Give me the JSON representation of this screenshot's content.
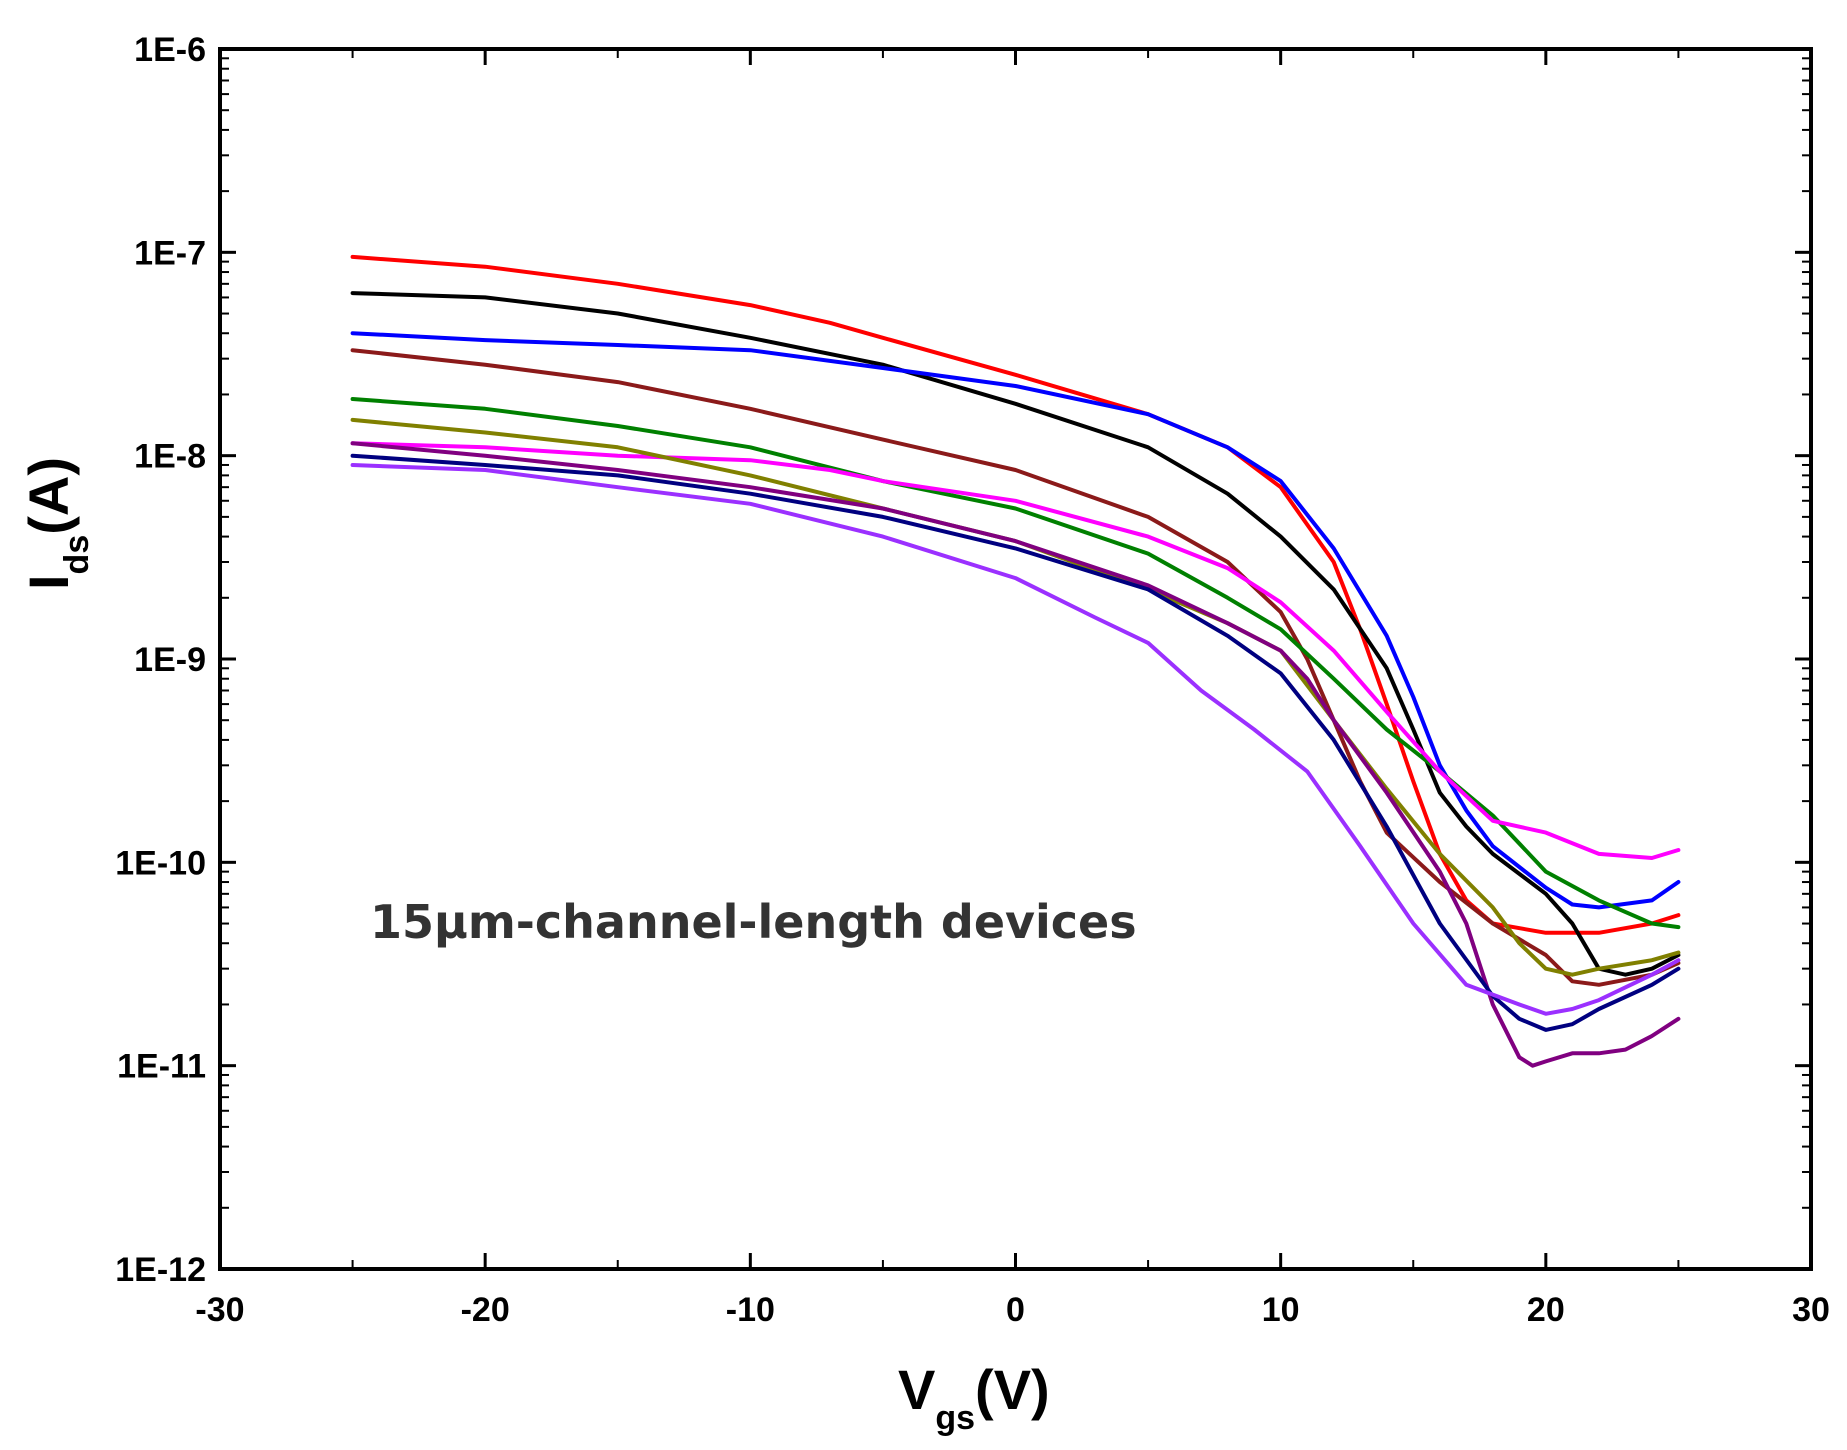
{
  "chart_data": {
    "type": "line",
    "title": "",
    "xlabel": {
      "main": "V",
      "sub": "gs",
      "unit": "(V)"
    },
    "ylabel": {
      "main": "I",
      "sub": "ds",
      "unit": "(A)"
    },
    "xlim": [
      -30,
      30
    ],
    "ylim_log10": [
      -12,
      -6
    ],
    "y_scale": "log",
    "x_ticks": [
      -30,
      -20,
      -10,
      0,
      10,
      20,
      30
    ],
    "x_tick_labels": [
      "-30",
      "-20",
      "-10",
      "0",
      "10",
      "20",
      "30"
    ],
    "y_ticks_log10": [
      -6,
      -7,
      -8,
      -9,
      -10,
      -11,
      -12
    ],
    "y_tick_labels": [
      "1E-6",
      "1E-7",
      "1E-8",
      "1E-9",
      "1E-10",
      "1E-11",
      "1E-12"
    ],
    "annotation": "15μm-channel-length devices",
    "grid": false,
    "legend": "none",
    "series": [
      {
        "name": "red",
        "color": "#ff0000",
        "points": [
          [
            -25,
            9.5e-08
          ],
          [
            -20,
            8.5e-08
          ],
          [
            -15,
            7e-08
          ],
          [
            -10,
            5.5e-08
          ],
          [
            -7,
            4.5e-08
          ],
          [
            -5,
            3.8e-08
          ],
          [
            0,
            2.5e-08
          ],
          [
            5,
            1.6e-08
          ],
          [
            8,
            1.1e-08
          ],
          [
            10,
            7e-09
          ],
          [
            12,
            3e-09
          ],
          [
            13,
            1.4e-09
          ],
          [
            14,
            6e-10
          ],
          [
            15,
            2.5e-10
          ],
          [
            16,
            1.1e-10
          ],
          [
            17,
            6.5e-11
          ],
          [
            18,
            5e-11
          ],
          [
            20,
            4.5e-11
          ],
          [
            22,
            4.5e-11
          ],
          [
            24,
            5e-11
          ],
          [
            25,
            5.5e-11
          ]
        ]
      },
      {
        "name": "black",
        "color": "#000000",
        "points": [
          [
            -25,
            6.3e-08
          ],
          [
            -20,
            6e-08
          ],
          [
            -15,
            5e-08
          ],
          [
            -10,
            3.8e-08
          ],
          [
            -5,
            2.8e-08
          ],
          [
            0,
            1.8e-08
          ],
          [
            5,
            1.1e-08
          ],
          [
            8,
            6.5e-09
          ],
          [
            10,
            4e-09
          ],
          [
            12,
            2.2e-09
          ],
          [
            14,
            9e-10
          ],
          [
            15,
            4.5e-10
          ],
          [
            16,
            2.2e-10
          ],
          [
            17,
            1.5e-10
          ],
          [
            18,
            1.1e-10
          ],
          [
            20,
            7e-11
          ],
          [
            21,
            5e-11
          ],
          [
            22,
            3e-11
          ],
          [
            23,
            2.8e-11
          ],
          [
            24,
            3e-11
          ],
          [
            25,
            3.5e-11
          ]
        ]
      },
      {
        "name": "blue",
        "color": "#0000ff",
        "points": [
          [
            -25,
            4e-08
          ],
          [
            -20,
            3.7e-08
          ],
          [
            -15,
            3.5e-08
          ],
          [
            -10,
            3.3e-08
          ],
          [
            -5,
            2.7e-08
          ],
          [
            0,
            2.2e-08
          ],
          [
            5,
            1.6e-08
          ],
          [
            8,
            1.1e-08
          ],
          [
            10,
            7.5e-09
          ],
          [
            12,
            3.5e-09
          ],
          [
            14,
            1.3e-09
          ],
          [
            15,
            6.5e-10
          ],
          [
            16,
            3e-10
          ],
          [
            17,
            1.8e-10
          ],
          [
            18,
            1.2e-10
          ],
          [
            20,
            7.5e-11
          ],
          [
            21,
            6.2e-11
          ],
          [
            22,
            6e-11
          ],
          [
            24,
            6.5e-11
          ],
          [
            25,
            8e-11
          ]
        ]
      },
      {
        "name": "dark-red",
        "color": "#8b1a1a",
        "points": [
          [
            -25,
            3.3e-08
          ],
          [
            -20,
            2.8e-08
          ],
          [
            -15,
            2.3e-08
          ],
          [
            -10,
            1.7e-08
          ],
          [
            -5,
            1.2e-08
          ],
          [
            0,
            8.5e-09
          ],
          [
            5,
            5e-09
          ],
          [
            8,
            3e-09
          ],
          [
            10,
            1.7e-09
          ],
          [
            11,
            1e-09
          ],
          [
            12,
            5e-10
          ],
          [
            13,
            2.5e-10
          ],
          [
            14,
            1.4e-10
          ],
          [
            16,
            8e-11
          ],
          [
            18,
            5e-11
          ],
          [
            20,
            3.5e-11
          ],
          [
            21,
            2.6e-11
          ],
          [
            22,
            2.5e-11
          ],
          [
            24,
            2.8e-11
          ],
          [
            25,
            3.2e-11
          ]
        ]
      },
      {
        "name": "green",
        "color": "#008000",
        "points": [
          [
            -25,
            1.9e-08
          ],
          [
            -20,
            1.7e-08
          ],
          [
            -15,
            1.4e-08
          ],
          [
            -10,
            1.1e-08
          ],
          [
            -5,
            7.5e-09
          ],
          [
            0,
            5.5e-09
          ],
          [
            5,
            3.3e-09
          ],
          [
            8,
            2e-09
          ],
          [
            10,
            1.4e-09
          ],
          [
            12,
            8e-10
          ],
          [
            14,
            4.5e-10
          ],
          [
            16,
            2.8e-10
          ],
          [
            18,
            1.7e-10
          ],
          [
            20,
            9e-11
          ],
          [
            22,
            6.5e-11
          ],
          [
            24,
            5e-11
          ],
          [
            25,
            4.8e-11
          ]
        ]
      },
      {
        "name": "magenta",
        "color": "#ff00ff",
        "points": [
          [
            -25,
            1.15e-08
          ],
          [
            -20,
            1.1e-08
          ],
          [
            -15,
            1e-08
          ],
          [
            -10,
            9.5e-09
          ],
          [
            -7,
            8.5e-09
          ],
          [
            -5,
            7.5e-09
          ],
          [
            0,
            6e-09
          ],
          [
            5,
            4e-09
          ],
          [
            8,
            2.8e-09
          ],
          [
            10,
            1.9e-09
          ],
          [
            12,
            1.1e-09
          ],
          [
            14,
            5.5e-10
          ],
          [
            16,
            2.8e-10
          ],
          [
            18,
            1.6e-10
          ],
          [
            20,
            1.4e-10
          ],
          [
            22,
            1.1e-10
          ],
          [
            24,
            1.05e-10
          ],
          [
            25,
            1.15e-10
          ]
        ]
      },
      {
        "name": "olive",
        "color": "#808000",
        "points": [
          [
            -25,
            1.5e-08
          ],
          [
            -20,
            1.3e-08
          ],
          [
            -15,
            1.1e-08
          ],
          [
            -10,
            8e-09
          ],
          [
            -5,
            5.5e-09
          ],
          [
            0,
            3.8e-09
          ],
          [
            5,
            2.2e-09
          ],
          [
            8,
            1.5e-09
          ],
          [
            10,
            1.1e-09
          ],
          [
            12,
            5e-10
          ],
          [
            14,
            2.3e-10
          ],
          [
            16,
            1.1e-10
          ],
          [
            18,
            6e-11
          ],
          [
            19,
            4e-11
          ],
          [
            20,
            3e-11
          ],
          [
            21,
            2.8e-11
          ],
          [
            22,
            3e-11
          ],
          [
            24,
            3.3e-11
          ],
          [
            25,
            3.6e-11
          ]
        ]
      },
      {
        "name": "purple",
        "color": "#800080",
        "points": [
          [
            -25,
            1.15e-08
          ],
          [
            -20,
            1e-08
          ],
          [
            -15,
            8.5e-09
          ],
          [
            -10,
            7e-09
          ],
          [
            -5,
            5.5e-09
          ],
          [
            0,
            3.8e-09
          ],
          [
            5,
            2.3e-09
          ],
          [
            8,
            1.5e-09
          ],
          [
            10,
            1.1e-09
          ],
          [
            11,
            8e-10
          ],
          [
            12,
            5e-10
          ],
          [
            14,
            2.2e-10
          ],
          [
            16,
            9e-11
          ],
          [
            17,
            5e-11
          ],
          [
            18,
            2e-11
          ],
          [
            19,
            1.1e-11
          ],
          [
            19.5,
            1e-11
          ],
          [
            20,
            1.05e-11
          ],
          [
            21,
            1.15e-11
          ],
          [
            22,
            1.15e-11
          ],
          [
            23,
            1.2e-11
          ],
          [
            24,
            1.4e-11
          ],
          [
            25,
            1.7e-11
          ]
        ]
      },
      {
        "name": "navy",
        "color": "#000080",
        "points": [
          [
            -25,
            1e-08
          ],
          [
            -20,
            9e-09
          ],
          [
            -15,
            8e-09
          ],
          [
            -10,
            6.5e-09
          ],
          [
            -5,
            5e-09
          ],
          [
            0,
            3.5e-09
          ],
          [
            5,
            2.2e-09
          ],
          [
            8,
            1.3e-09
          ],
          [
            10,
            8.5e-10
          ],
          [
            12,
            4e-10
          ],
          [
            14,
            1.5e-10
          ],
          [
            16,
            5e-11
          ],
          [
            18,
            2.2e-11
          ],
          [
            19,
            1.7e-11
          ],
          [
            20,
            1.5e-11
          ],
          [
            21,
            1.6e-11
          ],
          [
            22,
            1.9e-11
          ],
          [
            24,
            2.5e-11
          ],
          [
            25,
            3e-11
          ]
        ]
      },
      {
        "name": "violet",
        "color": "#9b30ff",
        "points": [
          [
            -25,
            9e-09
          ],
          [
            -20,
            8.5e-09
          ],
          [
            -15,
            7e-09
          ],
          [
            -10,
            5.8e-09
          ],
          [
            -5,
            4e-09
          ],
          [
            0,
            2.5e-09
          ],
          [
            3,
            1.6e-09
          ],
          [
            5,
            1.2e-09
          ],
          [
            7,
            7e-10
          ],
          [
            9,
            4.5e-10
          ],
          [
            11,
            2.8e-10
          ],
          [
            13,
            1.2e-10
          ],
          [
            15,
            5e-11
          ],
          [
            17,
            2.5e-11
          ],
          [
            19,
            2e-11
          ],
          [
            20,
            1.8e-11
          ],
          [
            21,
            1.9e-11
          ],
          [
            22,
            2.1e-11
          ],
          [
            24,
            2.8e-11
          ],
          [
            25,
            3.3e-11
          ]
        ]
      }
    ]
  }
}
